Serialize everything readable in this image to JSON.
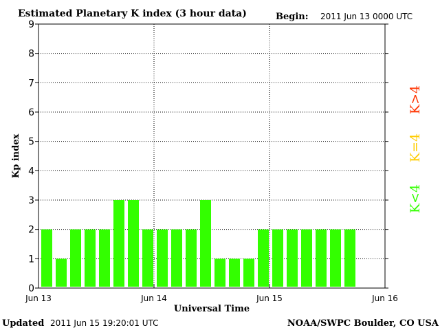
{
  "chart_data": {
    "type": "bar",
    "title": "Estimated Planetary K index (3 hour data)",
    "begin_label": "Begin:",
    "begin_value": "2011 Jun 13 0000 UTC",
    "xlabel": "Universal Time",
    "ylabel": "Kp index",
    "ylim": [
      0,
      9
    ],
    "y_ticks": [
      "0",
      "1",
      "2",
      "3",
      "4",
      "5",
      "6",
      "7",
      "8",
      "9"
    ],
    "x_tick_labels": [
      "Jun 13",
      "Jun 14",
      "Jun 15",
      "Jun 16"
    ],
    "grid": true,
    "values": [
      2,
      1,
      2,
      2,
      2,
      3,
      3,
      2,
      2,
      2,
      2,
      3,
      1,
      1,
      1,
      2,
      2,
      2,
      2,
      2,
      2,
      2
    ],
    "slot_count": 24,
    "bar_color": "#33ff00",
    "legend": {
      "placement": "right",
      "items": [
        {
          "label": "K<4",
          "color": "#33ff00"
        },
        {
          "label": "K=4",
          "color": "#ffcc00"
        },
        {
          "label": "K>4",
          "color": "#ff3300"
        }
      ]
    }
  },
  "footer": {
    "updated_label": "Updated",
    "updated_value": "2011 Jun 15 19:20:01 UTC",
    "credit": "NOAA/SWPC Boulder, CO USA"
  }
}
